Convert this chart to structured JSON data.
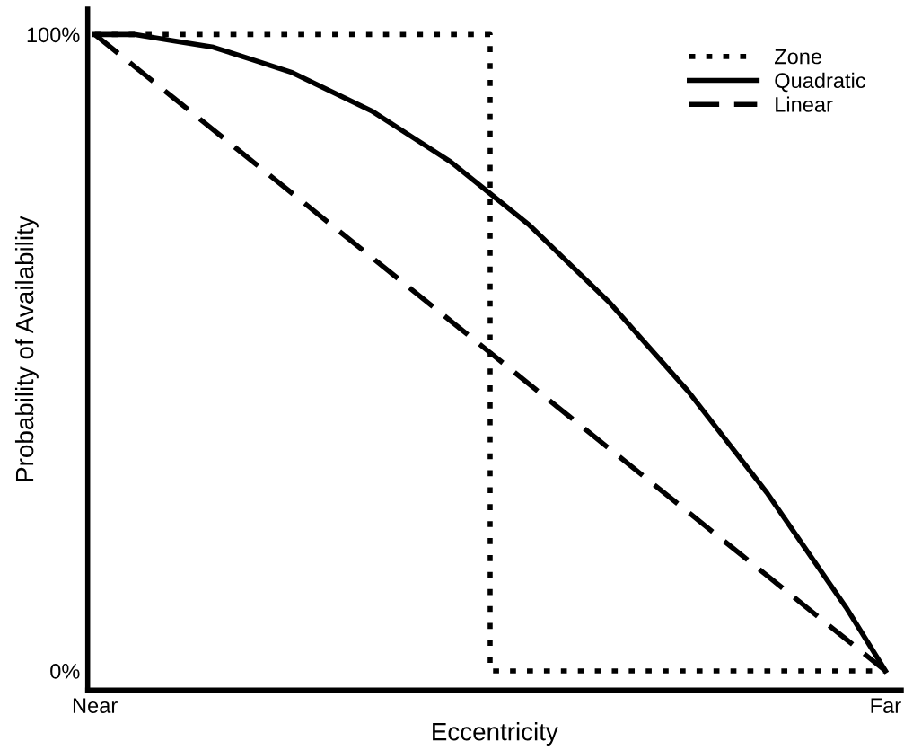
{
  "chart_data": {
    "type": "line",
    "xlabel": "Eccentricity",
    "ylabel": "Probability of Availability",
    "categories": [
      "Near",
      null,
      null,
      null,
      null,
      null,
      null,
      null,
      null,
      null,
      null,
      null,
      null,
      null,
      null,
      null,
      null,
      null,
      null,
      null,
      "Far"
    ],
    "ylim": [
      -3,
      104
    ],
    "yticks": [
      {
        "value": 0,
        "label": "0%"
      },
      {
        "value": 100,
        "label": "100%"
      }
    ],
    "grid": false,
    "legend": "top right",
    "marker": "none",
    "series": [
      {
        "name": "Zone",
        "type": "step",
        "color": "#000000",
        "line_style": "dotted",
        "values": [
          100,
          100,
          100,
          100,
          100,
          100,
          100,
          100,
          100,
          100,
          100,
          0,
          0,
          0,
          0,
          0,
          0,
          0,
          0,
          0,
          0
        ]
      },
      {
        "name": "Quadratic",
        "color": "#000000",
        "line_style": "solid",
        "values": [
          100,
          100,
          99,
          98,
          96,
          94,
          91,
          88,
          84,
          80,
          75,
          70,
          64,
          58,
          51,
          44,
          36,
          28,
          19,
          10,
          0
        ]
      },
      {
        "name": "Linear",
        "color": "#000000",
        "line_style": "dashed",
        "values": [
          100,
          95,
          90,
          85,
          80,
          75,
          70,
          65,
          60,
          55,
          50,
          45,
          40,
          35,
          30,
          25,
          20,
          15,
          10,
          5,
          0
        ]
      }
    ]
  }
}
